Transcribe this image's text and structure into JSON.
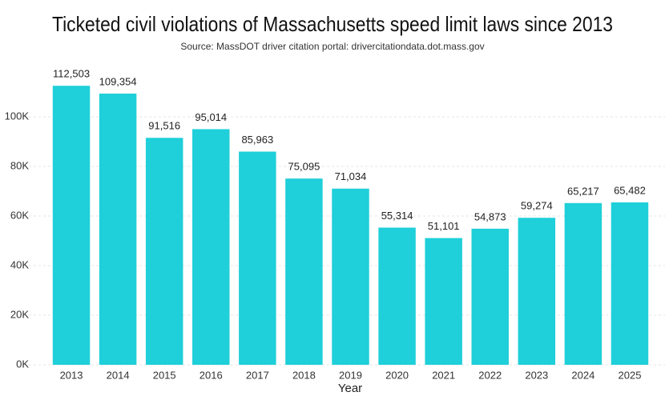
{
  "chart_data": {
    "type": "bar",
    "title": "Ticketed civil violations of Massachusetts speed limit laws since 2013",
    "subtitle": "Source: MassDOT driver citation portal: drivercitationdata.dot.mass.gov",
    "x_label": "Year",
    "categories": [
      "2013",
      "2014",
      "2015",
      "2016",
      "2017",
      "2018",
      "2019",
      "2020",
      "2021",
      "2022",
      "2023",
      "2024",
      "2025"
    ],
    "values": [
      112503,
      109354,
      91516,
      95014,
      85963,
      75095,
      71034,
      55314,
      51101,
      54873,
      59274,
      65217,
      65482
    ],
    "value_labels": [
      "112,503",
      "109,354",
      "91,516",
      "95,014",
      "85,963",
      "75,095",
      "71,034",
      "55,314",
      "51,101",
      "54,873",
      "59,274",
      "65,217",
      "65,482"
    ],
    "color": "#1fcfd9",
    "ylim": [
      0,
      115000
    ],
    "yticks": [
      {
        "value": 0,
        "label": "0K"
      },
      {
        "value": 20000,
        "label": "20K"
      },
      {
        "value": 40000,
        "label": "40K"
      },
      {
        "value": 60000,
        "label": "60K"
      },
      {
        "value": 80000,
        "label": "80K"
      },
      {
        "value": 100000,
        "label": "100K"
      }
    ],
    "grid": true
  }
}
